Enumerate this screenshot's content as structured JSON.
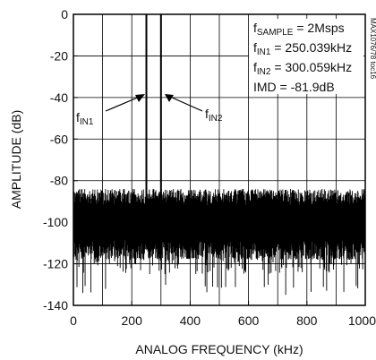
{
  "chart_data": {
    "type": "line",
    "title": "",
    "xlabel": "ANALOG FREQUENCY (kHz)",
    "ylabel": "AMPLITUDE (dB)",
    "xlim": [
      0,
      1000
    ],
    "ylim": [
      -140,
      0
    ],
    "x_ticks": [
      "0",
      "200",
      "400",
      "600",
      "800",
      "1000"
    ],
    "y_ticks": [
      "0",
      "-20",
      "-40",
      "-60",
      "-80",
      "-100",
      "-120",
      "-140"
    ],
    "grid": true,
    "noise_floor": {
      "median_db": -100,
      "upper_db": -85,
      "lower_db": -125,
      "deep_spikes_db": -135
    },
    "peaks": [
      {
        "name": "fIN1",
        "label_main": "f",
        "label_sub": "IN1",
        "frequency_khz": 250.039,
        "amplitude_db": 0
      },
      {
        "name": "fIN2",
        "label_main": "f",
        "label_sub": "IN2",
        "frequency_khz": 300.059,
        "amplitude_db": 0
      }
    ],
    "annotations": {
      "sample": {
        "main": "f",
        "sub": "SAMPLE",
        "value": " = 2Msps"
      },
      "in1": {
        "main": "f",
        "sub": "IN1",
        "value": " = 250.039kHz"
      },
      "in2": {
        "main": "f",
        "sub": "IN2",
        "value": " = 300.059kHz"
      },
      "imd": {
        "text": "IMD = -81.9dB"
      }
    },
    "side_code": "MAX1076/78 toc16"
  }
}
